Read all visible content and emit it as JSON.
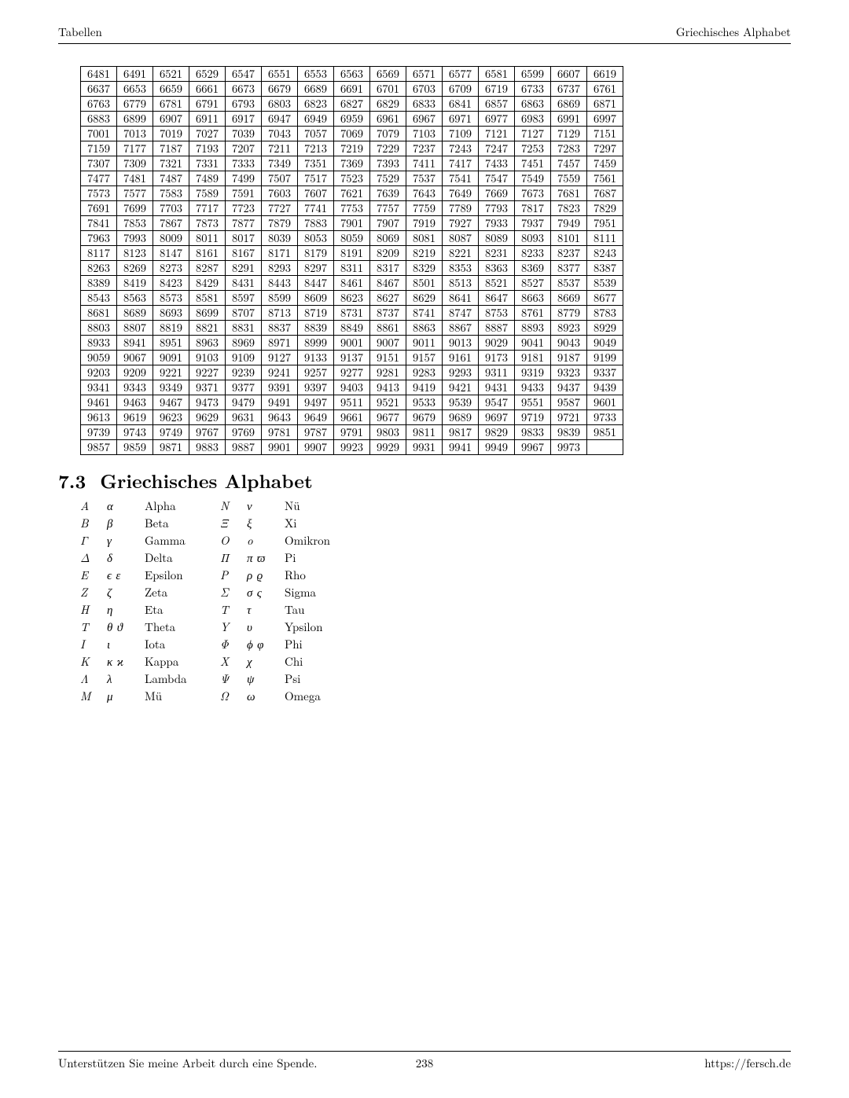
{
  "header": {
    "left": "Tabellen",
    "right": "Griechisches Alphabet"
  },
  "section": {
    "number": "7.3",
    "title": "Griechisches Alphabet"
  },
  "footer": {
    "left": "Unterstützen Sie meine Arbeit durch eine Spende.",
    "page": "238",
    "right": "https://fersch.de"
  },
  "numberTable": {
    "cols": 15,
    "cell_fontsize": 14.5,
    "border_color": "#000000",
    "rows": [
      [
        6481,
        6491,
        6521,
        6529,
        6547,
        6551,
        6553,
        6563,
        6569,
        6571,
        6577,
        6581,
        6599,
        6607,
        6619
      ],
      [
        6637,
        6653,
        6659,
        6661,
        6673,
        6679,
        6689,
        6691,
        6701,
        6703,
        6709,
        6719,
        6733,
        6737,
        6761
      ],
      [
        6763,
        6779,
        6781,
        6791,
        6793,
        6803,
        6823,
        6827,
        6829,
        6833,
        6841,
        6857,
        6863,
        6869,
        6871
      ],
      [
        6883,
        6899,
        6907,
        6911,
        6917,
        6947,
        6949,
        6959,
        6961,
        6967,
        6971,
        6977,
        6983,
        6991,
        6997
      ],
      [
        7001,
        7013,
        7019,
        7027,
        7039,
        7043,
        7057,
        7069,
        7079,
        7103,
        7109,
        7121,
        7127,
        7129,
        7151
      ],
      [
        7159,
        7177,
        7187,
        7193,
        7207,
        7211,
        7213,
        7219,
        7229,
        7237,
        7243,
        7247,
        7253,
        7283,
        7297
      ],
      [
        7307,
        7309,
        7321,
        7331,
        7333,
        7349,
        7351,
        7369,
        7393,
        7411,
        7417,
        7433,
        7451,
        7457,
        7459
      ],
      [
        7477,
        7481,
        7487,
        7489,
        7499,
        7507,
        7517,
        7523,
        7529,
        7537,
        7541,
        7547,
        7549,
        7559,
        7561
      ],
      [
        7573,
        7577,
        7583,
        7589,
        7591,
        7603,
        7607,
        7621,
        7639,
        7643,
        7649,
        7669,
        7673,
        7681,
        7687
      ],
      [
        7691,
        7699,
        7703,
        7717,
        7723,
        7727,
        7741,
        7753,
        7757,
        7759,
        7789,
        7793,
        7817,
        7823,
        7829
      ],
      [
        7841,
        7853,
        7867,
        7873,
        7877,
        7879,
        7883,
        7901,
        7907,
        7919,
        7927,
        7933,
        7937,
        7949,
        7951
      ],
      [
        7963,
        7993,
        8009,
        8011,
        8017,
        8039,
        8053,
        8059,
        8069,
        8081,
        8087,
        8089,
        8093,
        8101,
        8111
      ],
      [
        8117,
        8123,
        8147,
        8161,
        8167,
        8171,
        8179,
        8191,
        8209,
        8219,
        8221,
        8231,
        8233,
        8237,
        8243
      ],
      [
        8263,
        8269,
        8273,
        8287,
        8291,
        8293,
        8297,
        8311,
        8317,
        8329,
        8353,
        8363,
        8369,
        8377,
        8387
      ],
      [
        8389,
        8419,
        8423,
        8429,
        8431,
        8443,
        8447,
        8461,
        8467,
        8501,
        8513,
        8521,
        8527,
        8537,
        8539
      ],
      [
        8543,
        8563,
        8573,
        8581,
        8597,
        8599,
        8609,
        8623,
        8627,
        8629,
        8641,
        8647,
        8663,
        8669,
        8677
      ],
      [
        8681,
        8689,
        8693,
        8699,
        8707,
        8713,
        8719,
        8731,
        8737,
        8741,
        8747,
        8753,
        8761,
        8779,
        8783
      ],
      [
        8803,
        8807,
        8819,
        8821,
        8831,
        8837,
        8839,
        8849,
        8861,
        8863,
        8867,
        8887,
        8893,
        8923,
        8929
      ],
      [
        8933,
        8941,
        8951,
        8963,
        8969,
        8971,
        8999,
        9001,
        9007,
        9011,
        9013,
        9029,
        9041,
        9043,
        9049
      ],
      [
        9059,
        9067,
        9091,
        9103,
        9109,
        9127,
        9133,
        9137,
        9151,
        9157,
        9161,
        9173,
        9181,
        9187,
        9199
      ],
      [
        9203,
        9209,
        9221,
        9227,
        9239,
        9241,
        9257,
        9277,
        9281,
        9283,
        9293,
        9311,
        9319,
        9323,
        9337
      ],
      [
        9341,
        9343,
        9349,
        9371,
        9377,
        9391,
        9397,
        9403,
        9413,
        9419,
        9421,
        9431,
        9433,
        9437,
        9439
      ],
      [
        9461,
        9463,
        9467,
        9473,
        9479,
        9491,
        9497,
        9511,
        9521,
        9533,
        9539,
        9547,
        9551,
        9587,
        9601
      ],
      [
        9613,
        9619,
        9623,
        9629,
        9631,
        9643,
        9649,
        9661,
        9677,
        9679,
        9689,
        9697,
        9719,
        9721,
        9733
      ],
      [
        9739,
        9743,
        9749,
        9767,
        9769,
        9781,
        9787,
        9791,
        9803,
        9811,
        9817,
        9829,
        9833,
        9839,
        9851
      ],
      [
        9857,
        9859,
        9871,
        9883,
        9887,
        9901,
        9907,
        9923,
        9929,
        9931,
        9941,
        9949,
        9967,
        9973,
        ""
      ]
    ]
  },
  "greek": {
    "left": [
      {
        "cap": "A",
        "low": "α",
        "name": "Alpha"
      },
      {
        "cap": "B",
        "low": "β",
        "name": "Beta"
      },
      {
        "cap": "Γ",
        "low": "γ",
        "name": "Gamma"
      },
      {
        "cap": "Δ",
        "low": "δ",
        "name": "Delta"
      },
      {
        "cap": "E",
        "low": "ϵ ε",
        "name": "Epsilon"
      },
      {
        "cap": "Z",
        "low": "ζ",
        "name": "Zeta"
      },
      {
        "cap": "H",
        "low": "η",
        "name": "Eta"
      },
      {
        "cap": "T",
        "low": "θ ϑ",
        "name": "Theta"
      },
      {
        "cap": "I",
        "low": "ι",
        "name": "Iota"
      },
      {
        "cap": "K",
        "low": "κ ϰ",
        "name": "Kappa"
      },
      {
        "cap": "Λ",
        "low": "λ",
        "name": "Lambda"
      },
      {
        "cap": "M",
        "low": "μ",
        "name": "Mü"
      }
    ],
    "right": [
      {
        "cap": "N",
        "low": "ν",
        "name": "Nü"
      },
      {
        "cap": "Ξ",
        "low": "ξ",
        "name": "Xi"
      },
      {
        "cap": "O",
        "low": "o",
        "name": "Omikron"
      },
      {
        "cap": "Π",
        "low": "π ϖ",
        "name": "Pi"
      },
      {
        "cap": "P",
        "low": "ρ ϱ",
        "name": "Rho"
      },
      {
        "cap": "Σ",
        "low": "σ ς",
        "name": "Sigma"
      },
      {
        "cap": "T",
        "low": "τ",
        "name": "Tau"
      },
      {
        "cap": "Y",
        "low": "υ",
        "name": "Ypsilon"
      },
      {
        "cap": "Φ",
        "low": "ϕ φ",
        "name": "Phi"
      },
      {
        "cap": "X",
        "low": "χ",
        "name": "Chi"
      },
      {
        "cap": "Ψ",
        "low": "ψ",
        "name": "Psi"
      },
      {
        "cap": "Ω",
        "low": "ω",
        "name": "Omega"
      }
    ]
  }
}
